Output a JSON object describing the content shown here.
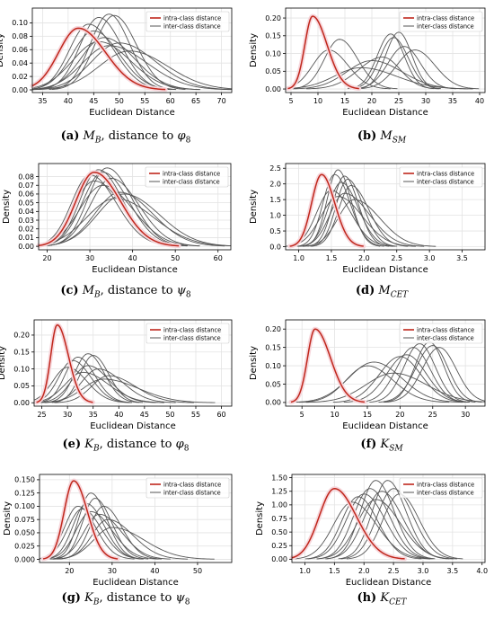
{
  "legend": {
    "intra": "intra-class distance",
    "inter": "inter-class distance"
  },
  "colors": {
    "intra": "#c0271c",
    "inter": "#555555",
    "grid": "#e3e3e3",
    "axis": "#000000",
    "halo": "#f7d7dc"
  },
  "captions": [
    {
      "label": "(a)",
      "sym": "M",
      "sub": "B",
      "rest": ", distance to ",
      "greek": "φ",
      "gsub": "8"
    },
    {
      "label": "(b)",
      "sym": "M",
      "sub": "SM",
      "rest": "",
      "greek": "",
      "gsub": ""
    },
    {
      "label": "(c)",
      "sym": "M",
      "sub": "B",
      "rest": ", distance to ",
      "greek": "ψ",
      "gsub": "8"
    },
    {
      "label": "(d)",
      "sym": "M",
      "sub": "CET",
      "rest": "",
      "greek": "",
      "gsub": ""
    },
    {
      "label": "(e)",
      "sym": "K",
      "sub": "B",
      "rest": ", distance to ",
      "greek": "φ",
      "gsub": "8"
    },
    {
      "label": "(f)",
      "sym": "K",
      "sub": "SM",
      "rest": "",
      "greek": "",
      "gsub": ""
    },
    {
      "label": "(g)",
      "sym": "K",
      "sub": "B",
      "rest": ", distance to ",
      "greek": "ψ",
      "gsub": "8"
    },
    {
      "label": "(h)",
      "sym": "K",
      "sub": "CET",
      "rest": "",
      "greek": "",
      "gsub": ""
    }
  ],
  "chart_data": [
    {
      "type": "line",
      "xlabel": "Euclidean Distance",
      "ylabel": "Density",
      "xlim": [
        33,
        72
      ],
      "ylim": [
        -0.004,
        0.122
      ],
      "xticks": [
        35,
        40,
        45,
        50,
        55,
        60,
        65,
        70
      ],
      "xtick_labels": [
        "35",
        "40",
        "45",
        "50",
        "55",
        "60",
        "65",
        "70"
      ],
      "yticks": [
        0,
        0.02,
        0.04,
        0.06,
        0.08,
        0.1
      ],
      "ytick_labels": [
        "0.00",
        "0.02",
        "0.04",
        "0.06",
        "0.08",
        "0.10"
      ],
      "intra": {
        "mu": 42,
        "sigma": 4.4,
        "peak": 0.092,
        "skew": 0.35
      },
      "inter": [
        {
          "mu": 46,
          "sigma": 4.0,
          "peak": 0.108,
          "skew": 0.2
        },
        {
          "mu": 48,
          "sigma": 3.8,
          "peak": 0.113,
          "skew": 0.1
        },
        {
          "mu": 49,
          "sigma": 4.0,
          "peak": 0.111,
          "skew": 0.15
        },
        {
          "mu": 44,
          "sigma": 4.2,
          "peak": 0.098,
          "skew": 0.3
        },
        {
          "mu": 45,
          "sigma": 4.5,
          "peak": 0.088,
          "skew": 0.2
        },
        {
          "mu": 47,
          "sigma": 5.0,
          "peak": 0.078,
          "skew": 0.3
        },
        {
          "mu": 50,
          "sigma": 6.0,
          "peak": 0.07,
          "skew": 0.3
        },
        {
          "mu": 48,
          "sigma": 6.0,
          "peak": 0.066,
          "skew": 0.4
        },
        {
          "mu": 52,
          "sigma": 6.5,
          "peak": 0.058,
          "skew": 0.25
        },
        {
          "mu": 46,
          "sigma": 5.5,
          "peak": 0.072,
          "skew": 0.2
        }
      ]
    },
    {
      "type": "line",
      "xlabel": "Euclidean Distance",
      "ylabel": "Density",
      "xlim": [
        4,
        41
      ],
      "ylim": [
        -0.01,
        0.228
      ],
      "xticks": [
        5,
        10,
        15,
        20,
        25,
        30,
        35,
        40
      ],
      "xtick_labels": [
        "5",
        "10",
        "15",
        "20",
        "25",
        "30",
        "35",
        "40"
      ],
      "yticks": [
        0,
        0.05,
        0.1,
        0.15,
        0.2
      ],
      "ytick_labels": [
        "0.00",
        "0.05",
        "0.10",
        "0.15",
        "0.20"
      ],
      "intra": {
        "mu": 9,
        "sigma": 1.9,
        "peak": 0.205,
        "skew": 0.7
      },
      "inter": [
        {
          "mu": 14,
          "sigma": 3.0,
          "peak": 0.14,
          "skew": 0.2
        },
        {
          "mu": 12,
          "sigma": 3.2,
          "peak": 0.11,
          "skew": 0.2
        },
        {
          "mu": 23.5,
          "sigma": 2.5,
          "peak": 0.155,
          "skew": 0.0
        },
        {
          "mu": 25,
          "sigma": 2.4,
          "peak": 0.16,
          "skew": 0.0
        },
        {
          "mu": 24,
          "sigma": 2.6,
          "peak": 0.145,
          "skew": 0.1
        },
        {
          "mu": 28,
          "sigma": 3.5,
          "peak": 0.11,
          "skew": 0.1
        },
        {
          "mu": 22,
          "sigma": 4.0,
          "peak": 0.09,
          "skew": -0.3
        },
        {
          "mu": 20,
          "sigma": 5.0,
          "peak": 0.08,
          "skew": 0.2
        },
        {
          "mu": 26,
          "sigma": 3.0,
          "peak": 0.12,
          "skew": 0.0
        },
        {
          "mu": 18,
          "sigma": 5.5,
          "peak": 0.06,
          "skew": 0.3
        }
      ]
    },
    {
      "type": "line",
      "xlabel": "Euclidean Distance",
      "ylabel": "Density",
      "xlim": [
        18,
        63
      ],
      "ylim": [
        -0.004,
        0.095
      ],
      "xticks": [
        20,
        30,
        40,
        50,
        60
      ],
      "xtick_labels": [
        "20",
        "30",
        "40",
        "50",
        "60"
      ],
      "yticks": [
        0,
        0.01,
        0.02,
        0.03,
        0.04,
        0.05,
        0.06,
        0.07,
        0.08
      ],
      "ytick_labels": [
        "0.00",
        "0.01",
        "0.02",
        "0.03",
        "0.04",
        "0.05",
        "0.06",
        "0.07",
        "0.08"
      ],
      "intra": {
        "mu": 31,
        "sigma": 5.0,
        "peak": 0.085,
        "skew": 0.4
      },
      "inter": [
        {
          "mu": 32,
          "sigma": 4.8,
          "peak": 0.088,
          "skew": 0.3
        },
        {
          "mu": 34,
          "sigma": 5.0,
          "peak": 0.09,
          "skew": 0.3
        },
        {
          "mu": 33,
          "sigma": 5.2,
          "peak": 0.085,
          "skew": 0.3
        },
        {
          "mu": 30,
          "sigma": 5.0,
          "peak": 0.082,
          "skew": 0.4
        },
        {
          "mu": 35,
          "sigma": 5.5,
          "peak": 0.078,
          "skew": 0.3
        },
        {
          "mu": 37,
          "sigma": 6.5,
          "peak": 0.062,
          "skew": 0.3
        },
        {
          "mu": 38,
          "sigma": 7.0,
          "peak": 0.06,
          "skew": 0.3
        },
        {
          "mu": 36,
          "sigma": 7.5,
          "peak": 0.055,
          "skew": 0.3
        },
        {
          "mu": 33,
          "sigma": 6.0,
          "peak": 0.07,
          "skew": 0.3
        },
        {
          "mu": 31,
          "sigma": 5.5,
          "peak": 0.075,
          "skew": 0.4
        }
      ]
    },
    {
      "type": "line",
      "xlabel": "Euclidean Distance",
      "ylabel": "Density",
      "xlim": [
        0.8,
        3.85
      ],
      "ylim": [
        -0.1,
        2.65
      ],
      "xticks": [
        1.0,
        1.5,
        2.0,
        2.5,
        3.0,
        3.5
      ],
      "xtick_labels": [
        "1.0",
        "1.5",
        "2.0",
        "2.5",
        "3.0",
        "3.5"
      ],
      "yticks": [
        0,
        0.5,
        1.0,
        1.5,
        2.0,
        2.5
      ],
      "ytick_labels": [
        "0.0",
        "0.5",
        "1.0",
        "1.5",
        "2.0",
        "2.5"
      ],
      "intra": {
        "mu": 1.35,
        "sigma": 0.17,
        "peak": 2.3,
        "skew": 0.3
      },
      "inter": [
        {
          "mu": 1.6,
          "sigma": 0.18,
          "peak": 2.45,
          "skew": 0.2
        },
        {
          "mu": 1.55,
          "sigma": 0.2,
          "peak": 2.3,
          "skew": 0.3
        },
        {
          "mu": 1.7,
          "sigma": 0.19,
          "peak": 2.25,
          "skew": 0.2
        },
        {
          "mu": 1.75,
          "sigma": 0.2,
          "peak": 2.15,
          "skew": 0.3
        },
        {
          "mu": 1.65,
          "sigma": 0.22,
          "peak": 2.05,
          "skew": 0.3
        },
        {
          "mu": 1.8,
          "sigma": 0.22,
          "peak": 1.95,
          "skew": 0.4
        },
        {
          "mu": 1.5,
          "sigma": 0.25,
          "peak": 1.8,
          "skew": 0.3
        },
        {
          "mu": 1.7,
          "sigma": 0.28,
          "peak": 1.7,
          "skew": 0.6
        },
        {
          "mu": 1.85,
          "sigma": 0.3,
          "peak": 1.5,
          "skew": 0.5
        },
        {
          "mu": 1.6,
          "sigma": 0.3,
          "peak": 1.6,
          "skew": 0.4
        }
      ]
    },
    {
      "type": "line",
      "xlabel": "Euclidean Distance",
      "ylabel": "Density",
      "xlim": [
        23.5,
        62
      ],
      "ylim": [
        -0.01,
        0.245
      ],
      "xticks": [
        25,
        30,
        35,
        40,
        45,
        50,
        55,
        60
      ],
      "xtick_labels": [
        "25",
        "30",
        "35",
        "40",
        "45",
        "50",
        "55",
        "60"
      ],
      "yticks": [
        0,
        0.05,
        0.1,
        0.15,
        0.2
      ],
      "ytick_labels": [
        "0.00",
        "0.05",
        "0.10",
        "0.15",
        "0.20"
      ],
      "intra": {
        "mu": 28,
        "sigma": 1.6,
        "peak": 0.23,
        "skew": 0.6
      },
      "inter": [
        {
          "mu": 34,
          "sigma": 2.8,
          "peak": 0.145,
          "skew": 0.2
        },
        {
          "mu": 35,
          "sigma": 2.7,
          "peak": 0.14,
          "skew": 0.2
        },
        {
          "mu": 32,
          "sigma": 2.8,
          "peak": 0.135,
          "skew": 0.3
        },
        {
          "mu": 31,
          "sigma": 3.0,
          "peak": 0.125,
          "skew": 0.3
        },
        {
          "mu": 34,
          "sigma": 3.5,
          "peak": 0.11,
          "skew": 0.3
        },
        {
          "mu": 36,
          "sigma": 3.8,
          "peak": 0.1,
          "skew": 0.4
        },
        {
          "mu": 33,
          "sigma": 4.0,
          "peak": 0.09,
          "skew": 0.4
        },
        {
          "mu": 38,
          "sigma": 4.0,
          "peak": 0.08,
          "skew": 0.5
        },
        {
          "mu": 30,
          "sigma": 3.2,
          "peak": 0.105,
          "skew": 0.3
        },
        {
          "mu": 37,
          "sigma": 5.0,
          "peak": 0.07,
          "skew": 0.6
        }
      ]
    },
    {
      "type": "line",
      "xlabel": "Euclidean Distance",
      "ylabel": "Density",
      "xlim": [
        2.5,
        33
      ],
      "ylim": [
        -0.01,
        0.225
      ],
      "xticks": [
        5,
        10,
        15,
        20,
        25,
        30
      ],
      "xtick_labels": [
        "5",
        "10",
        "15",
        "20",
        "25",
        "30"
      ],
      "yticks": [
        0,
        0.05,
        0.1,
        0.15,
        0.2
      ],
      "ytick_labels": [
        "0.00",
        "0.05",
        "0.10",
        "0.15",
        "0.20"
      ],
      "intra": {
        "mu": 7,
        "sigma": 1.6,
        "peak": 0.2,
        "skew": 0.8
      },
      "inter": [
        {
          "mu": 22,
          "sigma": 2.6,
          "peak": 0.15,
          "skew": 0.0
        },
        {
          "mu": 23,
          "sigma": 2.4,
          "peak": 0.16,
          "skew": 0.0
        },
        {
          "mu": 24.5,
          "sigma": 2.2,
          "peak": 0.165,
          "skew": 0.0
        },
        {
          "mu": 25,
          "sigma": 2.5,
          "peak": 0.155,
          "skew": -0.1
        },
        {
          "mu": 21,
          "sigma": 3.0,
          "peak": 0.13,
          "skew": 0.0
        },
        {
          "mu": 20,
          "sigma": 3.2,
          "peak": 0.125,
          "skew": 0.0
        },
        {
          "mu": 26,
          "sigma": 2.6,
          "peak": 0.15,
          "skew": 0.0
        },
        {
          "mu": 16,
          "sigma": 4.0,
          "peak": 0.11,
          "skew": 0.1
        },
        {
          "mu": 15,
          "sigma": 3.5,
          "peak": 0.1,
          "skew": 0.2
        },
        {
          "mu": 19,
          "sigma": 4.5,
          "peak": 0.08,
          "skew": 0.2
        }
      ]
    },
    {
      "type": "line",
      "xlabel": "Euclidean Distance",
      "ylabel": "Density",
      "xlim": [
        13,
        58
      ],
      "ylim": [
        -0.006,
        0.16
      ],
      "xticks": [
        20,
        30,
        40,
        50
      ],
      "xtick_labels": [
        "20",
        "30",
        "40",
        "50"
      ],
      "yticks": [
        0,
        0.025,
        0.05,
        0.075,
        0.1,
        0.125,
        0.15
      ],
      "ytick_labels": [
        "0.000",
        "0.025",
        "0.050",
        "0.075",
        "0.100",
        "0.125",
        "0.150"
      ],
      "intra": {
        "mu": 21,
        "sigma": 2.6,
        "peak": 0.148,
        "skew": 0.4
      },
      "inter": [
        {
          "mu": 25,
          "sigma": 3.2,
          "peak": 0.125,
          "skew": 0.3
        },
        {
          "mu": 26,
          "sigma": 3.3,
          "peak": 0.115,
          "skew": 0.3
        },
        {
          "mu": 24,
          "sigma": 3.5,
          "peak": 0.105,
          "skew": 0.3
        },
        {
          "mu": 28,
          "sigma": 3.6,
          "peak": 0.1,
          "skew": 0.3
        },
        {
          "mu": 23,
          "sigma": 3.8,
          "peak": 0.095,
          "skew": 0.3
        },
        {
          "mu": 27,
          "sigma": 4.2,
          "peak": 0.085,
          "skew": 0.4
        },
        {
          "mu": 29,
          "sigma": 4.5,
          "peak": 0.075,
          "skew": 0.5
        },
        {
          "mu": 25,
          "sigma": 4.0,
          "peak": 0.09,
          "skew": 0.4
        },
        {
          "mu": 30,
          "sigma": 5.5,
          "peak": 0.06,
          "skew": 0.6
        },
        {
          "mu": 22,
          "sigma": 3.5,
          "peak": 0.1,
          "skew": 0.3
        }
      ]
    },
    {
      "type": "line",
      "xlabel": "Euclidean Distance",
      "ylabel": "Density",
      "xlim": [
        0.78,
        4.05
      ],
      "ylim": [
        -0.06,
        1.56
      ],
      "xticks": [
        1.0,
        1.5,
        2.0,
        2.5,
        3.0,
        3.5,
        4.0
      ],
      "xtick_labels": [
        "1.0",
        "1.5",
        "2.0",
        "2.5",
        "3.0",
        "3.5",
        "4.0"
      ],
      "yticks": [
        0,
        0.25,
        0.5,
        0.75,
        1.0,
        1.25,
        1.5
      ],
      "ytick_labels": [
        "0.00",
        "0.25",
        "0.50",
        "0.75",
        "1.00",
        "1.25",
        "1.50"
      ],
      "intra": {
        "mu": 1.5,
        "sigma": 0.3,
        "peak": 1.3,
        "skew": 0.4
      },
      "inter": [
        {
          "mu": 2.2,
          "sigma": 0.28,
          "peak": 1.45,
          "skew": 0.2
        },
        {
          "mu": 2.4,
          "sigma": 0.28,
          "peak": 1.45,
          "skew": 0.2
        },
        {
          "mu": 2.1,
          "sigma": 0.3,
          "peak": 1.3,
          "skew": 0.2
        },
        {
          "mu": 2.3,
          "sigma": 0.32,
          "peak": 1.25,
          "skew": 0.2
        },
        {
          "mu": 2.0,
          "sigma": 0.32,
          "peak": 1.2,
          "skew": 0.2
        },
        {
          "mu": 2.5,
          "sigma": 0.3,
          "peak": 1.3,
          "skew": 0.2
        },
        {
          "mu": 1.9,
          "sigma": 0.3,
          "peak": 1.15,
          "skew": 0.2
        },
        {
          "mu": 2.2,
          "sigma": 0.35,
          "peak": 1.1,
          "skew": 0.3
        },
        {
          "mu": 2.6,
          "sigma": 0.3,
          "peak": 1.2,
          "skew": 0.2
        },
        {
          "mu": 1.8,
          "sigma": 0.35,
          "peak": 1.05,
          "skew": 0.3
        }
      ]
    }
  ]
}
